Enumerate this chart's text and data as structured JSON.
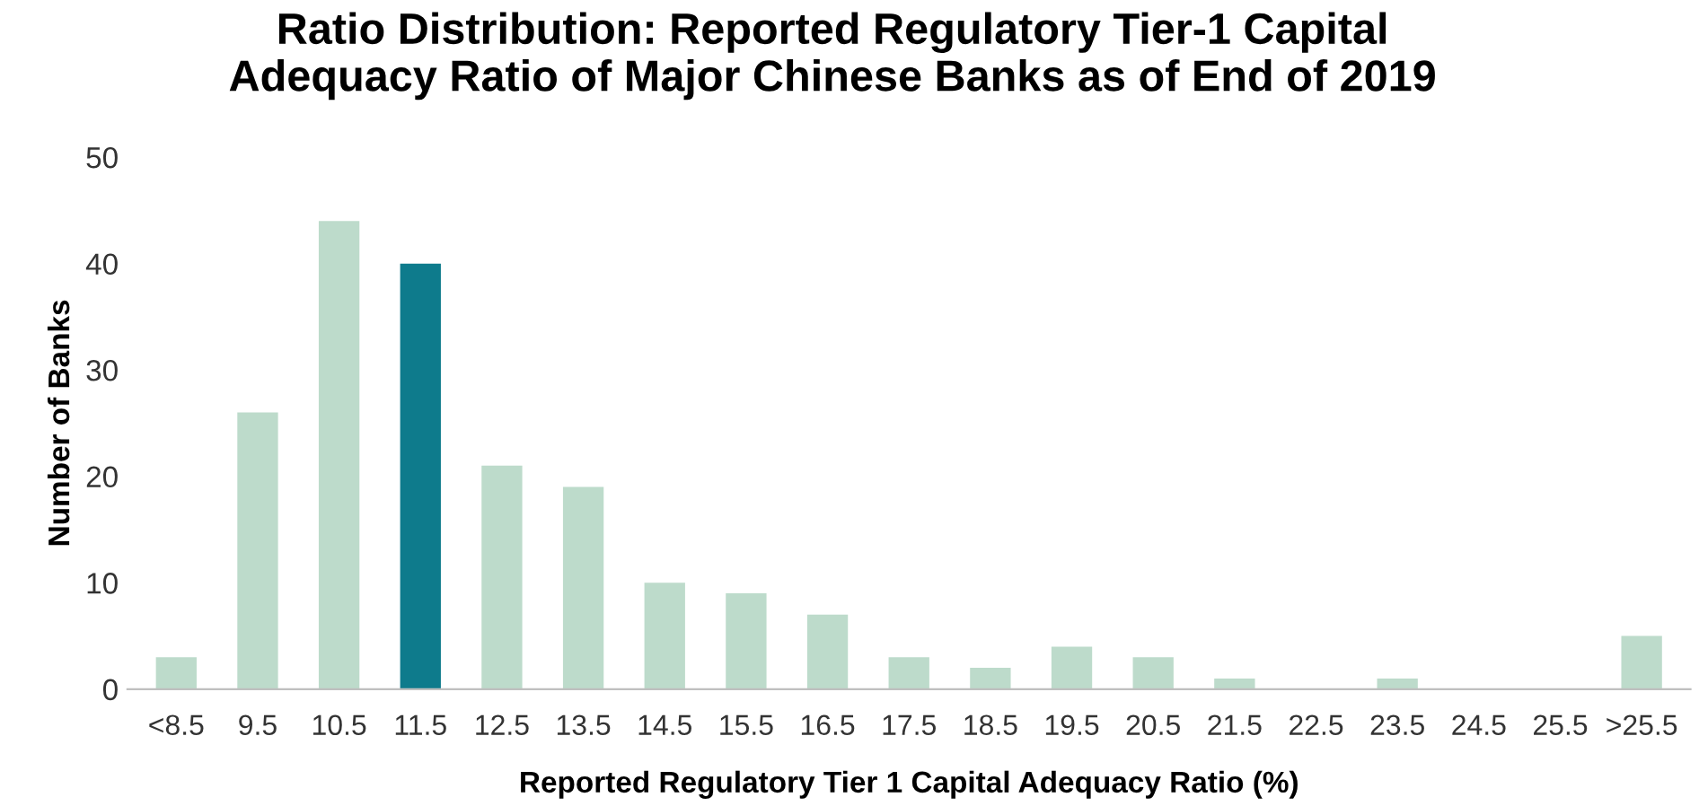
{
  "chart_data": {
    "type": "bar",
    "title": "Ratio Distribution: Reported Regulatory Tier-1 Capital\nAdequacy Ratio of Major Chinese Banks as of End of 2019",
    "xlabel": "Reported Regulatory Tier 1 Capital Adequacy Ratio (%)",
    "ylabel": "Number of Banks",
    "categories": [
      "<8.5",
      "9.5",
      "10.5",
      "11.5",
      "12.5",
      "13.5",
      "14.5",
      "15.5",
      "16.5",
      "17.5",
      "18.5",
      "19.5",
      "20.5",
      "21.5",
      "22.5",
      "23.5",
      "24.5",
      "25.5",
      ">25.5"
    ],
    "values": [
      3,
      26,
      44,
      40,
      21,
      19,
      10,
      9,
      7,
      3,
      2,
      4,
      3,
      1,
      0,
      1,
      0,
      0,
      5
    ],
    "colors": [
      "#bddbcb",
      "#bddbcb",
      "#bddbcb",
      "#0e7b8c",
      "#bddbcb",
      "#bddbcb",
      "#bddbcb",
      "#bddbcb",
      "#bddbcb",
      "#bddbcb",
      "#bddbcb",
      "#bddbcb",
      "#bddbcb",
      "#bddbcb",
      "#bddbcb",
      "#bddbcb",
      "#bddbcb",
      "#bddbcb",
      "#bddbcb"
    ],
    "ylim": [
      0,
      50
    ],
    "yticks": [
      0,
      10,
      20,
      30,
      40,
      50
    ],
    "grid": false,
    "legend": false
  }
}
